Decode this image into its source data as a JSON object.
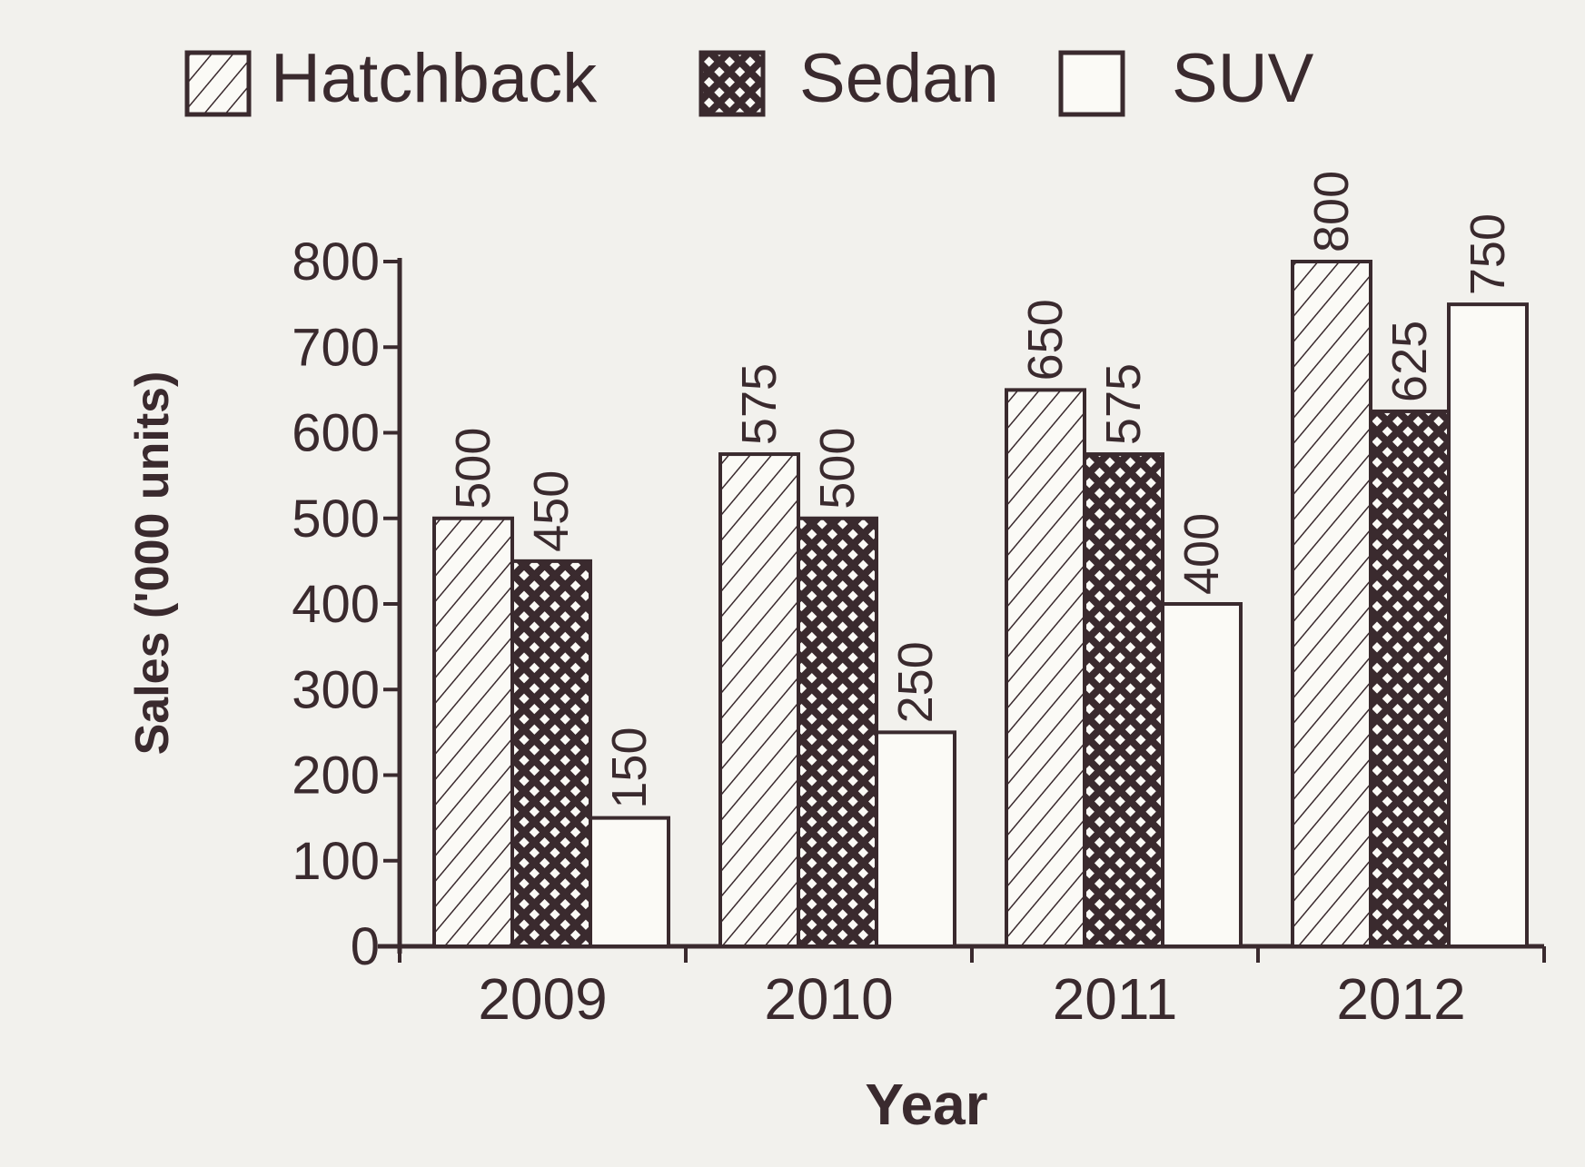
{
  "chart_data": {
    "type": "bar",
    "categories": [
      "2009",
      "2010",
      "2011",
      "2012"
    ],
    "series": [
      {
        "name": "Hatchback",
        "values": [
          500,
          575,
          650,
          800
        ],
        "pattern": "diagonal-hatch"
      },
      {
        "name": "Sedan",
        "values": [
          450,
          500,
          575,
          625
        ],
        "pattern": "crosshatch"
      },
      {
        "name": "SUV",
        "values": [
          150,
          250,
          400,
          750
        ],
        "pattern": "none"
      }
    ],
    "data_labels": [
      [
        "500",
        "575",
        "650",
        "800"
      ],
      [
        "450",
        "500",
        "575",
        "625"
      ],
      [
        "150",
        "250",
        "400",
        "750"
      ]
    ],
    "xlabel": "Year",
    "ylabel": "Sales ('000 units)",
    "ylim": [
      0,
      800
    ],
    "yticks": [
      0,
      100,
      200,
      300,
      400,
      500,
      600,
      700,
      800
    ],
    "ytick_labels": [
      "0",
      "100",
      "200",
      "300",
      "400",
      "500",
      "600",
      "700",
      "800"
    ],
    "legend_position": "top",
    "grid": false
  },
  "colors": {
    "ink": "#3a2a2e",
    "background": "#f2f1ed",
    "bar_fill": "#fbfaf6"
  }
}
